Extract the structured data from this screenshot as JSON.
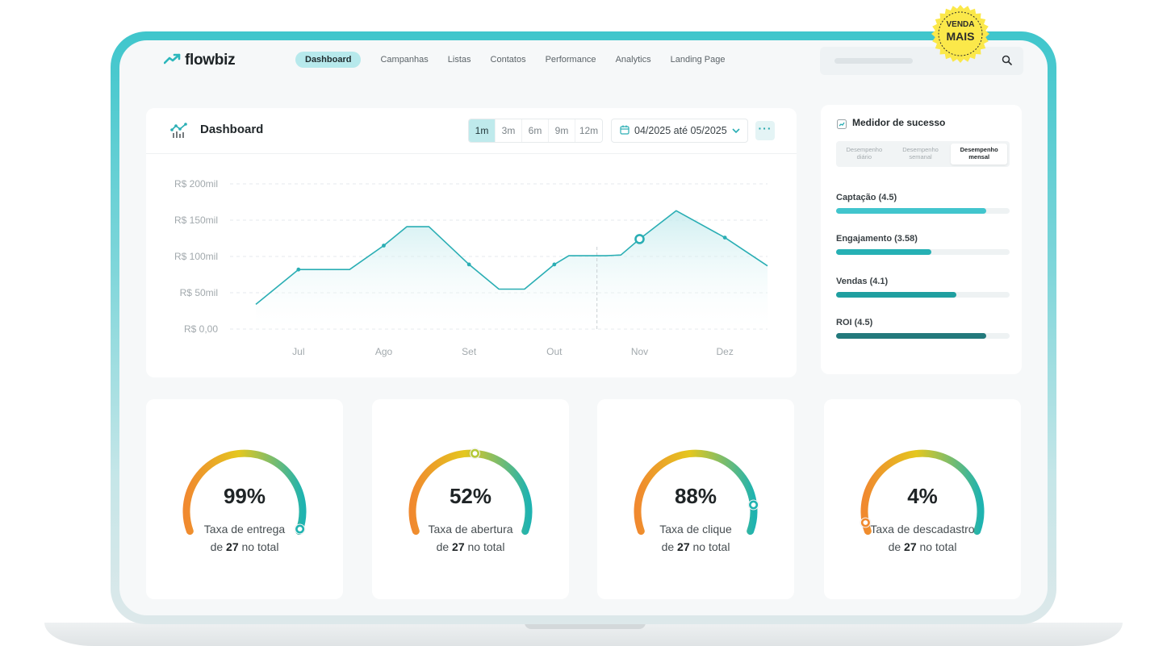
{
  "badge": {
    "line1": "VENDA",
    "line2": "MAIS"
  },
  "header": {
    "logo_text": "flowbiz",
    "nav": [
      "Dashboard",
      "Campanhas",
      "Listas",
      "Contatos",
      "Performance",
      "Analytics",
      "Landing Page"
    ],
    "active_nav": "Dashboard"
  },
  "dashboard": {
    "title": "Dashboard",
    "periods": [
      "1m",
      "3m",
      "6m",
      "9m",
      "12m"
    ],
    "active_period": "1m",
    "date_range": "04/2025 até 05/2025",
    "more_label": "···"
  },
  "chart_data": {
    "type": "area",
    "title": "",
    "xlabel": "",
    "ylabel": "",
    "y_tick_labels": [
      "R$ 200mil",
      "R$ 150mil",
      "R$ 100mil",
      "R$ 50mil",
      "R$ 0,00"
    ],
    "y_ticks": [
      200,
      150,
      100,
      50,
      0
    ],
    "ylim": [
      0,
      200
    ],
    "x_tick_labels": [
      "Jul",
      "Ago",
      "Set",
      "Out",
      "Nov",
      "Dez"
    ],
    "x_ticks": [
      1,
      2,
      3,
      4,
      5,
      6
    ],
    "xlim": [
      0.5,
      6.5
    ],
    "grid": true,
    "series": [
      {
        "points": [
          [
            0.5,
            34
          ],
          [
            1.0,
            82
          ],
          [
            1.6,
            82
          ],
          [
            2.0,
            115
          ],
          [
            2.27,
            141
          ],
          [
            2.53,
            141
          ],
          [
            3.0,
            89
          ],
          [
            3.35,
            55
          ],
          [
            3.65,
            55
          ],
          [
            4.0,
            89
          ],
          [
            4.17,
            101
          ],
          [
            4.6,
            101
          ],
          [
            4.78,
            102
          ],
          [
            5.0,
            124
          ],
          [
            5.43,
            163
          ],
          [
            6.0,
            126
          ],
          [
            6.5,
            87
          ]
        ],
        "highlight_x": 5.0,
        "cursor_x": 4.5
      }
    ]
  },
  "medidor": {
    "title": "Medidor de sucesso",
    "tabs": [
      "Desempenho diário",
      "Desempenho semanal",
      "Desempenho mensal"
    ],
    "active_tab": "Desempenho mensal",
    "metrics": [
      {
        "label": "Captação (4.5)",
        "value": 4.5,
        "max": 5.2,
        "color": "#41c5cd"
      },
      {
        "label": "Engajamento  (3.58)",
        "value": 3.58,
        "max": 6.5,
        "color": "#26b0b4"
      },
      {
        "label": "Vendas (4.1)",
        "value": 4.1,
        "max": 5.9,
        "color": "#1f9fa0"
      },
      {
        "label": "ROI (4.5)",
        "value": 4.5,
        "max": 5.2,
        "color": "#23797c"
      }
    ]
  },
  "gauges": [
    {
      "value": "99%",
      "percent": 99,
      "label": "Taxa de entrega",
      "prefix": "de",
      "count": "27",
      "suffix": "no total"
    },
    {
      "value": "52%",
      "percent": 52,
      "label": "Taxa de abertura",
      "prefix": "de",
      "count": "27",
      "suffix": "no total"
    },
    {
      "value": "88%",
      "percent": 88,
      "label": "Taxa de clique",
      "prefix": "de",
      "count": "27",
      "suffix": "no total"
    },
    {
      "value": "4%",
      "percent": 4,
      "label": "Taxa de descadastro",
      "prefix": "de",
      "count": "27",
      "suffix": "no total"
    }
  ],
  "colors": {
    "accent": "#3fc6cc",
    "line": "#2aaeb4",
    "badge": "#fbe84a",
    "gauge_start": "#f0892f",
    "gauge_mid": "#e4c71e",
    "gauge_end": "#1fb3b0"
  }
}
